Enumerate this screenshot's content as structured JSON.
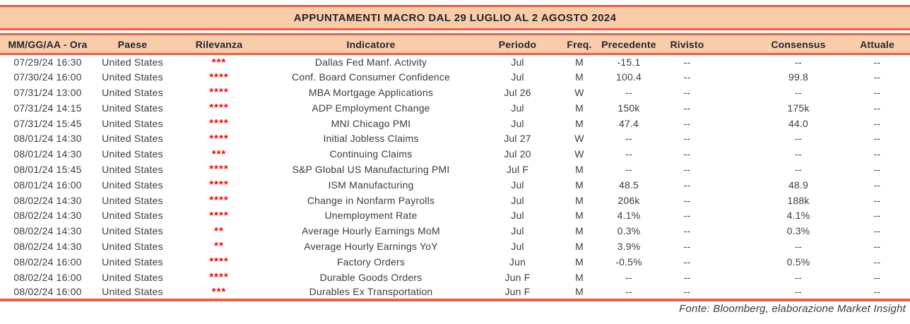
{
  "title": "APPUNTAMENTI MACRO DAL 29 LUGLIO AL 2 AGOSTO 2024",
  "colors": {
    "band_fill": "#F9CDA9",
    "band_border": "#EF5D44",
    "text_head": "#26242F",
    "text_body": "#3C3B45",
    "relevance_red": "#FF0000"
  },
  "table": {
    "columns": [
      {
        "key": "date_time",
        "label": "MM/GG/AA - Ora"
      },
      {
        "key": "country",
        "label": "Paese"
      },
      {
        "key": "relevance",
        "label": "Rilevanza"
      },
      {
        "key": "indicator",
        "label": "Indicatore"
      },
      {
        "key": "period",
        "label": "Periodo"
      },
      {
        "key": "freq",
        "label": "Freq."
      },
      {
        "key": "previous",
        "label": "Precedente"
      },
      {
        "key": "revised",
        "label": "Rivisto"
      },
      {
        "key": "consensus",
        "label": "Consensus"
      },
      {
        "key": "actual",
        "label": "Attuale"
      }
    ],
    "rows": [
      {
        "date_time": "07/29/24 16:30",
        "country": "United States",
        "relevance": "***",
        "indicator": "Dallas Fed Manf. Activity",
        "period": "Jul",
        "freq": "M",
        "previous": "-15.1",
        "revised": "--",
        "consensus": "--",
        "actual": "--"
      },
      {
        "date_time": "07/30/24 16:00",
        "country": "United States",
        "relevance": "****",
        "indicator": "Conf. Board Consumer Confidence",
        "period": "Jul",
        "freq": "M",
        "previous": "100.4",
        "revised": "--",
        "consensus": "99.8",
        "actual": "--"
      },
      {
        "date_time": "07/31/24 13:00",
        "country": "United States",
        "relevance": "****",
        "indicator": "MBA Mortgage Applications",
        "period": "Jul 26",
        "freq": "W",
        "previous": "--",
        "revised": "--",
        "consensus": "--",
        "actual": "--"
      },
      {
        "date_time": "07/31/24 14:15",
        "country": "United States",
        "relevance": "****",
        "indicator": "ADP Employment Change",
        "period": "Jul",
        "freq": "M",
        "previous": "150k",
        "revised": "--",
        "consensus": "175k",
        "actual": "--"
      },
      {
        "date_time": "07/31/24 15:45",
        "country": "United States",
        "relevance": "****",
        "indicator": "MNI Chicago PMI",
        "period": "Jul",
        "freq": "M",
        "previous": "47.4",
        "revised": "--",
        "consensus": "44.0",
        "actual": "--"
      },
      {
        "date_time": "08/01/24 14:30",
        "country": "United States",
        "relevance": "****",
        "indicator": "Initial Jobless Claims",
        "period": "Jul 27",
        "freq": "W",
        "previous": "--",
        "revised": "--",
        "consensus": "--",
        "actual": "--"
      },
      {
        "date_time": "08/01/24 14:30",
        "country": "United States",
        "relevance": "***",
        "indicator": "Continuing Claims",
        "period": "Jul 20",
        "freq": "W",
        "previous": "--",
        "revised": "--",
        "consensus": "--",
        "actual": "--"
      },
      {
        "date_time": "08/01/24 15:45",
        "country": "United States",
        "relevance": "****",
        "indicator": "S&P Global US Manufacturing PMI",
        "period": "Jul F",
        "freq": "M",
        "previous": "--",
        "revised": "--",
        "consensus": "--",
        "actual": "--"
      },
      {
        "date_time": "08/01/24 16:00",
        "country": "United States",
        "relevance": "****",
        "indicator": "ISM Manufacturing",
        "period": "Jul",
        "freq": "M",
        "previous": "48.5",
        "revised": "--",
        "consensus": "48.9",
        "actual": "--"
      },
      {
        "date_time": "08/02/24 14:30",
        "country": "United States",
        "relevance": "****",
        "indicator": "Change in Nonfarm Payrolls",
        "period": "Jul",
        "freq": "M",
        "previous": "206k",
        "revised": "--",
        "consensus": "188k",
        "actual": "--"
      },
      {
        "date_time": "08/02/24 14:30",
        "country": "United States",
        "relevance": "****",
        "indicator": "Unemployment Rate",
        "period": "Jul",
        "freq": "M",
        "previous": "4.1%",
        "revised": "--",
        "consensus": "4.1%",
        "actual": "--"
      },
      {
        "date_time": "08/02/24 14:30",
        "country": "United States",
        "relevance": "**",
        "indicator": "Average Hourly Earnings MoM",
        "period": "Jul",
        "freq": "M",
        "previous": "0.3%",
        "revised": "--",
        "consensus": "0.3%",
        "actual": "--"
      },
      {
        "date_time": "08/02/24 14:30",
        "country": "United States",
        "relevance": "**",
        "indicator": "Average Hourly Earnings YoY",
        "period": "Jul",
        "freq": "M",
        "previous": "3.9%",
        "revised": "--",
        "consensus": "--",
        "actual": "--"
      },
      {
        "date_time": "08/02/24 16:00",
        "country": "United States",
        "relevance": "****",
        "indicator": "Factory Orders",
        "period": "Jun",
        "freq": "M",
        "previous": "-0.5%",
        "revised": "--",
        "consensus": "0.5%",
        "actual": "--"
      },
      {
        "date_time": "08/02/24 16:00",
        "country": "United States",
        "relevance": "****",
        "indicator": "Durable Goods Orders",
        "period": "Jun F",
        "freq": "M",
        "previous": "--",
        "revised": "--",
        "consensus": "--",
        "actual": "--"
      },
      {
        "date_time": "08/02/24 16:00",
        "country": "United States",
        "relevance": "***",
        "indicator": "Durables Ex Transportation",
        "period": "Jun F",
        "freq": "M",
        "previous": "--",
        "revised": "--",
        "consensus": "--",
        "actual": "--"
      }
    ]
  },
  "footer": {
    "source_note": "Fonte: Bloomberg, elaborazione Market Insight"
  }
}
